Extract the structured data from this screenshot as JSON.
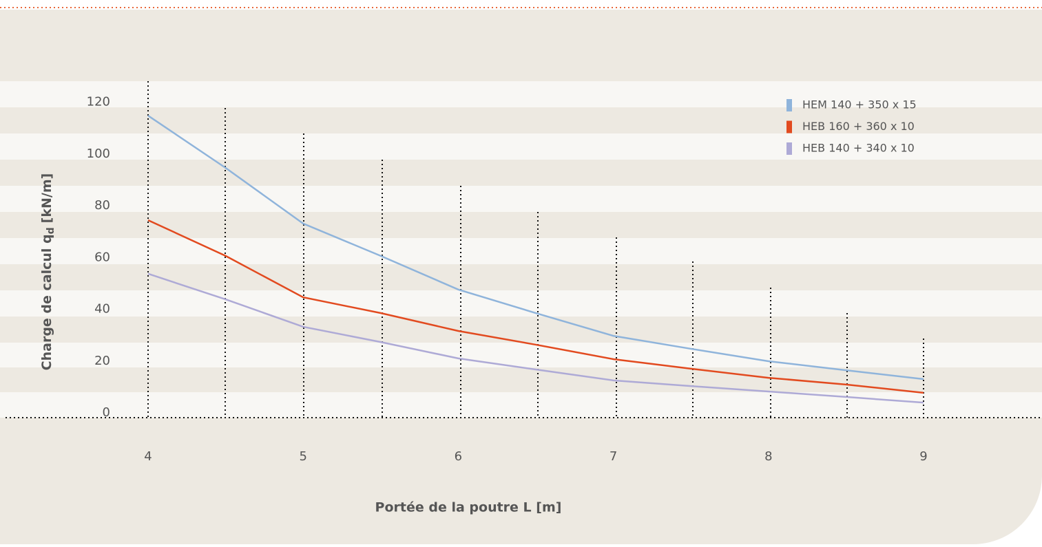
{
  "chart_data": {
    "type": "line",
    "xlabel": "Portée de la poutre L [m]",
    "ylabel": [
      "Charge de calcul q",
      "d",
      "[kN/m]"
    ],
    "x": [
      4,
      4.5,
      5,
      5.5,
      6,
      6.5,
      7,
      7.5,
      8,
      8.5,
      9
    ],
    "series": [
      {
        "name": "HEM 140 + 350 x 15",
        "color": "#8fb4db",
        "values": [
          116.7,
          96.5,
          75,
          62.5,
          49.5,
          40.4,
          31.6,
          26.6,
          21.8,
          18.3,
          14.9
        ]
      },
      {
        "name": "HEB 160 + 360 x 10",
        "color": "#e24a1f",
        "values": [
          76.3,
          62.5,
          46.5,
          40.4,
          33.5,
          28.2,
          22.6,
          18.9,
          15.4,
          12.8,
          9.6
        ]
      },
      {
        "name": "HEB 140 + 340 x 10",
        "color": "#aeaad6",
        "values": [
          55.6,
          45.7,
          35.1,
          29.2,
          22.9,
          18.6,
          14.4,
          12.2,
          10.1,
          8,
          5.8
        ]
      }
    ],
    "xlim": [
      4,
      9
    ],
    "ylim": [
      0,
      130
    ],
    "xticks": [
      4,
      5,
      6,
      7,
      8,
      9
    ],
    "yticks": [
      0,
      20,
      40,
      60,
      80,
      100,
      120
    ],
    "legend": "top-right"
  }
}
